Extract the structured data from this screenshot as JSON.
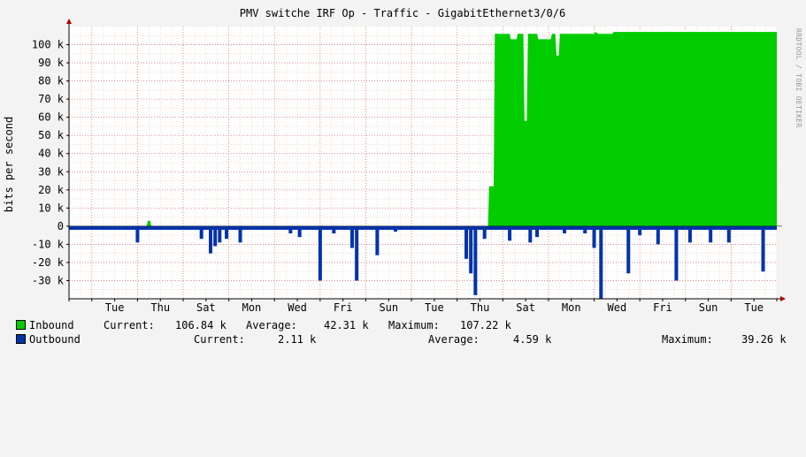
{
  "title": "PMV switche IRF Op - Traffic - GigabitEthernet3/0/6",
  "watermark": "RRDTOOL / TOBI OETIKER",
  "colors": {
    "background": "#f3f3f3",
    "plot_bg": "#ffffff",
    "grid": "#e9b4b4",
    "inbound": "#00cc00",
    "outbound": "#0033aa"
  },
  "chart_data": {
    "type": "area",
    "ylabel": "bits per second",
    "ylim": [
      -40000,
      110000
    ],
    "y_ticks": [
      -30000,
      -20000,
      -10000,
      0,
      10000,
      20000,
      30000,
      40000,
      50000,
      60000,
      70000,
      80000,
      90000,
      100000
    ],
    "y_tick_labels": [
      "-30 k",
      "-20 k",
      "-10 k",
      "0",
      "10 k",
      "20 k",
      "30 k",
      "40 k",
      "50 k",
      "60 k",
      "70 k",
      "80 k",
      "90 k",
      "100 k"
    ],
    "x_tick_labels": [
      "Tue",
      "Thu",
      "Sat",
      "Mon",
      "Wed",
      "Fri",
      "Sun",
      "Tue",
      "Thu",
      "Sat",
      "Mon",
      "Wed",
      "Fri",
      "Sun",
      "Tue"
    ],
    "x_range_days": [
      0,
      31
    ],
    "x_tick_days": [
      2,
      4,
      6,
      8,
      10,
      12,
      14,
      16,
      18,
      20,
      22,
      24,
      26,
      28,
      30
    ],
    "series": [
      {
        "name": "Inbound",
        "color": "#00cc00",
        "points": [
          [
            0,
            0
          ],
          [
            3.4,
            0
          ],
          [
            3.45,
            3000
          ],
          [
            3.55,
            3000
          ],
          [
            3.6,
            0
          ],
          [
            18.35,
            0
          ],
          [
            18.4,
            22000
          ],
          [
            18.6,
            22000
          ],
          [
            18.65,
            106000
          ],
          [
            19.3,
            106000
          ],
          [
            19.35,
            103000
          ],
          [
            19.6,
            103000
          ],
          [
            19.65,
            106000
          ],
          [
            19.9,
            106000
          ],
          [
            19.95,
            58000
          ],
          [
            20.05,
            58000
          ],
          [
            20.1,
            106000
          ],
          [
            20.5,
            106000
          ],
          [
            20.55,
            103000
          ],
          [
            21.1,
            103000
          ],
          [
            21.15,
            106000
          ],
          [
            21.3,
            106000
          ],
          [
            21.35,
            94000
          ],
          [
            21.45,
            94000
          ],
          [
            21.5,
            106000
          ],
          [
            23.0,
            106000
          ],
          [
            23.05,
            107000
          ],
          [
            23.2,
            106000
          ],
          [
            23.8,
            106000
          ],
          [
            23.85,
            107000
          ],
          [
            31,
            107000
          ]
        ]
      },
      {
        "name": "Outbound",
        "color": "#0033aa",
        "spikes": [
          [
            3.0,
            -9000
          ],
          [
            5.8,
            -7000
          ],
          [
            6.2,
            -15000
          ],
          [
            6.4,
            -11000
          ],
          [
            6.6,
            -9000
          ],
          [
            6.9,
            -7000
          ],
          [
            7.5,
            -9000
          ],
          [
            9.7,
            -4000
          ],
          [
            10.1,
            -6000
          ],
          [
            11.0,
            -30000
          ],
          [
            11.6,
            -4000
          ],
          [
            12.4,
            -12000
          ],
          [
            12.6,
            -30000
          ],
          [
            13.5,
            -16000
          ],
          [
            14.3,
            -3000
          ],
          [
            17.4,
            -18000
          ],
          [
            17.6,
            -26000
          ],
          [
            17.8,
            -38000
          ],
          [
            18.2,
            -7000
          ],
          [
            19.3,
            -8000
          ],
          [
            20.2,
            -9000
          ],
          [
            20.5,
            -6000
          ],
          [
            21.7,
            -4000
          ],
          [
            22.6,
            -4000
          ],
          [
            23.0,
            -12000
          ],
          [
            23.3,
            -40000
          ],
          [
            24.5,
            -26000
          ],
          [
            25.0,
            -5000
          ],
          [
            25.8,
            -10000
          ],
          [
            26.6,
            -30000
          ],
          [
            27.2,
            -9000
          ],
          [
            28.1,
            -9000
          ],
          [
            28.9,
            -9000
          ],
          [
            30.4,
            -25000
          ]
        ]
      }
    ]
  },
  "legend": {
    "inbound": {
      "label": "Inbound",
      "current_label": "Current:",
      "current": "106.84 k",
      "average_label": "Average:",
      "average": "42.31 k",
      "maximum_label": "Maximum:",
      "maximum": "107.22 k"
    },
    "outbound": {
      "label": "Outbound",
      "current_label": "Current:",
      "current": "2.11 k",
      "average_label": "Average:",
      "average": "4.59 k",
      "maximum_label": "Maximum:",
      "maximum": "39.26 k"
    }
  }
}
